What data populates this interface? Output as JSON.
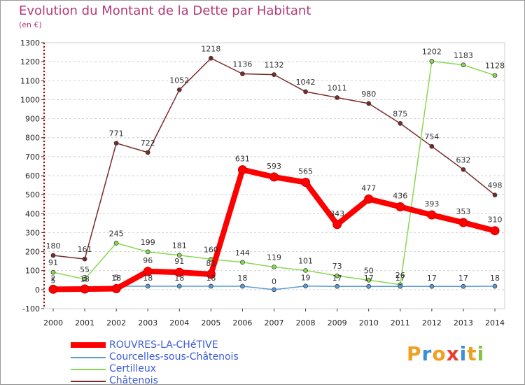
{
  "header": {
    "title": "Evolution du Montant de la Dette par Habitant",
    "subtitle": "(en €)"
  },
  "logo": {
    "text": "Proxiti",
    "colors": [
      "#f0a020",
      "#3a8fd8",
      "#f0a020",
      "#e84030",
      "#3a8fd8",
      "#f0a020",
      "#88c040"
    ]
  },
  "chart_data": {
    "type": "line",
    "x": [
      "2000",
      "2001",
      "2002",
      "2003",
      "2004",
      "2005",
      "2006",
      "2007",
      "2008",
      "2009",
      "2010",
      "2011",
      "2012",
      "2013",
      "2014"
    ],
    "ylim": [
      -100,
      1300
    ],
    "yticks": [
      "-100",
      "0",
      "100",
      "200",
      "300",
      "400",
      "500",
      "600",
      "700",
      "800",
      "900",
      "1000",
      "1100",
      "1200",
      "1300"
    ],
    "grid": "horizontal dashed",
    "legend_position": "bottom-left",
    "series": [
      {
        "name": "ROUVRES-LA-CHéTIVE",
        "color": "#ff0000",
        "values": [
          2,
          3,
          5,
          96,
          91,
          81,
          631,
          593,
          565,
          343,
          477,
          436,
          393,
          353,
          310
        ],
        "labels": [
          "2",
          "3",
          "5",
          "96",
          "91",
          "81",
          "631",
          "593",
          "565",
          "343",
          "477",
          "436",
          "393",
          "353",
          "310"
        ]
      },
      {
        "name": "Courcelles-sous-Châtenois",
        "color": "#5b9bd5",
        "values": [
          5,
          13,
          18,
          18,
          18,
          18,
          18,
          0,
          19,
          17,
          17,
          17,
          17,
          17,
          18
        ],
        "labels": [
          "5",
          "13",
          "18",
          "18",
          "18",
          "18",
          "18",
          "0",
          "19",
          "17",
          "17",
          "17",
          "17",
          "17",
          "18"
        ]
      },
      {
        "name": "Certilleux",
        "color": "#88d850",
        "values": [
          91,
          55,
          245,
          199,
          181,
          160,
          144,
          119,
          101,
          73,
          50,
          26,
          1202,
          1183,
          1128
        ],
        "labels": [
          "91",
          "55",
          "245",
          "199",
          "181",
          "160",
          "144",
          "119",
          "101",
          "73",
          "50",
          "26",
          "1202",
          "1183",
          "1128"
        ]
      },
      {
        "name": "Châtenois",
        "color": "#7a2a2a",
        "values": [
          180,
          161,
          771,
          722,
          1052,
          1218,
          1136,
          1132,
          1042,
          1011,
          980,
          875,
          754,
          632,
          498
        ],
        "labels": [
          "180",
          "161",
          "771",
          "722",
          "1052",
          "1218",
          "1136",
          "1132",
          "1042",
          "1011",
          "980",
          "875",
          "754",
          "632",
          "498"
        ]
      }
    ]
  }
}
